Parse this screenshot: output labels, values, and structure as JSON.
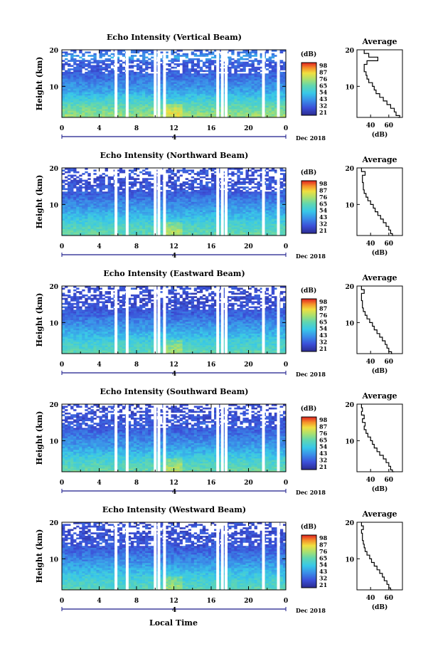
{
  "figure": {
    "x_label": "Local Time",
    "date_label": "Dec 2018",
    "date_day": "4",
    "y_label": "Height (km)",
    "colorbar_unit": "(dB)",
    "average_title": "Average",
    "average_xlabel": "(dB)"
  },
  "chart_data": [
    {
      "type": "heatmap",
      "title": "Echo Intensity (Vertical Beam)",
      "x_ticks": [
        "0",
        "4",
        "8",
        "12",
        "16",
        "20",
        "0"
      ],
      "x_range": [
        0,
        24
      ],
      "y_ticks": [
        "10",
        "20"
      ],
      "y_range": [
        1.5,
        20
      ],
      "colorbar_ticks": [
        "98",
        "87",
        "76",
        "65",
        "54",
        "43",
        "32",
        "21"
      ],
      "colorbar_range": [
        21,
        98
      ],
      "avg_ticks": [
        "40",
        "60"
      ],
      "gaps_hours": [
        5.8,
        7.0,
        10.0,
        10.4,
        11.0,
        16.7,
        17.2,
        17.6,
        21.6,
        23.2
      ],
      "avg_profile": {
        "height_km": [
          1.5,
          2,
          3,
          4,
          5,
          6,
          7,
          8,
          9,
          10,
          11,
          12,
          13,
          14,
          15,
          16,
          17,
          18,
          19,
          20
        ],
        "db": [
          70,
          72,
          68,
          66,
          62,
          58,
          54,
          50,
          46,
          44,
          42,
          38,
          36,
          35,
          33,
          33,
          36,
          48,
          38,
          33
        ]
      }
    },
    {
      "type": "heatmap",
      "title": "Echo Intensity (Northward Beam)",
      "x_ticks": [
        "0",
        "4",
        "8",
        "12",
        "16",
        "20",
        "0"
      ],
      "x_range": [
        0,
        24
      ],
      "y_ticks": [
        "10",
        "20"
      ],
      "y_range": [
        1.5,
        20
      ],
      "colorbar_ticks": [
        "98",
        "87",
        "76",
        "65",
        "54",
        "43",
        "32",
        "21"
      ],
      "colorbar_range": [
        21,
        98
      ],
      "avg_ticks": [
        "40",
        "60"
      ],
      "gaps_hours": [
        5.8,
        7.0,
        10.0,
        10.4,
        11.0,
        16.7,
        17.2,
        17.6,
        21.6,
        23.2
      ],
      "avg_profile": {
        "height_km": [
          1.5,
          2,
          3,
          4,
          5,
          6,
          7,
          8,
          9,
          10,
          11,
          12,
          13,
          14,
          15,
          16,
          17,
          18,
          19,
          20
        ],
        "db": [
          65,
          64,
          62,
          60,
          57,
          54,
          51,
          48,
          45,
          43,
          40,
          37,
          35,
          33,
          32,
          32,
          31,
          31,
          34,
          30
        ]
      }
    },
    {
      "type": "heatmap",
      "title": "Echo Intensity (Eastward Beam)",
      "x_ticks": [
        "0",
        "4",
        "8",
        "12",
        "16",
        "20",
        "0"
      ],
      "x_range": [
        0,
        24
      ],
      "y_ticks": [
        "10",
        "20"
      ],
      "y_range": [
        1.5,
        20
      ],
      "colorbar_ticks": [
        "98",
        "87",
        "76",
        "65",
        "54",
        "43",
        "32",
        "21"
      ],
      "colorbar_range": [
        21,
        98
      ],
      "avg_ticks": [
        "40",
        "60"
      ],
      "gaps_hours": [
        5.8,
        7.0,
        10.0,
        10.4,
        11.0,
        16.7,
        17.2,
        17.6,
        21.6,
        23.2
      ],
      "avg_profile": {
        "height_km": [
          1.5,
          2,
          3,
          4,
          5,
          6,
          7,
          8,
          9,
          10,
          11,
          12,
          13,
          14,
          15,
          16,
          17,
          18,
          19,
          20
        ],
        "db": [
          64,
          63,
          60,
          58,
          56,
          53,
          50,
          47,
          44,
          42,
          39,
          36,
          34,
          32,
          31,
          31,
          30,
          30,
          33,
          30
        ]
      }
    },
    {
      "type": "heatmap",
      "title": "Echo Intensity (Southward Beam)",
      "x_ticks": [
        "0",
        "4",
        "8",
        "12",
        "16",
        "20",
        "0"
      ],
      "x_range": [
        0,
        24
      ],
      "y_ticks": [
        "10",
        "20"
      ],
      "y_range": [
        1.5,
        20
      ],
      "colorbar_ticks": [
        "98",
        "87",
        "76",
        "65",
        "54",
        "43",
        "32",
        "21"
      ],
      "colorbar_range": [
        21,
        98
      ],
      "avg_ticks": [
        "40",
        "60"
      ],
      "gaps_hours": [
        5.8,
        7.0,
        10.0,
        10.4,
        11.0,
        16.7,
        17.2,
        17.6,
        21.6,
        23.2
      ],
      "avg_profile": {
        "height_km": [
          1.5,
          2,
          3,
          4,
          5,
          6,
          7,
          8,
          9,
          10,
          11,
          12,
          13,
          14,
          15,
          16,
          17,
          18,
          19,
          20
        ],
        "db": [
          66,
          64,
          62,
          60,
          57,
          54,
          50,
          47,
          44,
          42,
          40,
          37,
          35,
          33,
          34,
          31,
          33,
          30,
          31,
          30
        ]
      }
    },
    {
      "type": "heatmap",
      "title": "Echo Intensity (Westward Beam)",
      "x_ticks": [
        "0",
        "4",
        "8",
        "12",
        "16",
        "20",
        "0"
      ],
      "x_range": [
        0,
        24
      ],
      "y_ticks": [
        "10",
        "20"
      ],
      "y_range": [
        1.5,
        20
      ],
      "colorbar_ticks": [
        "98",
        "87",
        "76",
        "65",
        "54",
        "43",
        "32",
        "21"
      ],
      "colorbar_range": [
        21,
        98
      ],
      "avg_ticks": [
        "40",
        "60"
      ],
      "gaps_hours": [
        5.8,
        7.0,
        10.0,
        10.4,
        11.0,
        16.7,
        17.2,
        17.6,
        21.6,
        23.2
      ],
      "avg_profile": {
        "height_km": [
          1.5,
          2,
          3,
          4,
          5,
          6,
          7,
          8,
          9,
          10,
          11,
          12,
          13,
          14,
          15,
          16,
          17,
          18,
          19,
          20
        ],
        "db": [
          64,
          62,
          60,
          58,
          55,
          53,
          50,
          47,
          44,
          41,
          39,
          36,
          34,
          33,
          32,
          31,
          31,
          30,
          32,
          30
        ]
      }
    }
  ]
}
